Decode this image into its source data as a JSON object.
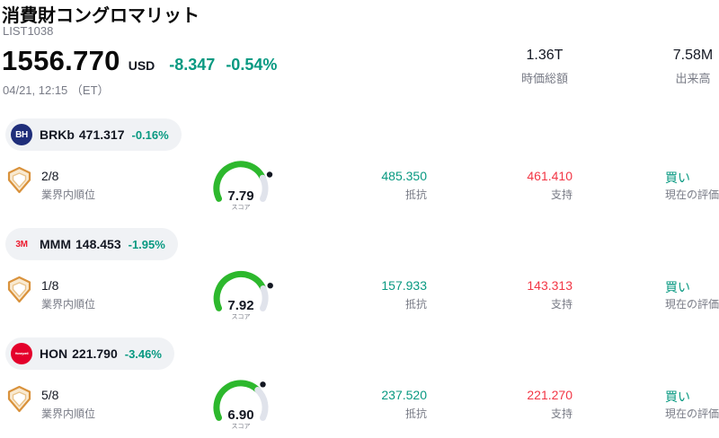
{
  "header": {
    "title": "消費財コングロマリット",
    "list_id": "LIST1038",
    "price": "1556.770",
    "currency": "USD",
    "change": "-8.347",
    "change_pct": "-0.54%",
    "datetime": "04/21, 12:15 （ET）",
    "market_cap": {
      "value": "1.36T",
      "label": "時価総額"
    },
    "volume": {
      "value": "7.58M",
      "label": "出来高"
    }
  },
  "labels": {
    "rank": "業界内順位",
    "score": "スコア",
    "resistance": "抵抗",
    "support": "支持",
    "rating": "現在の評価"
  },
  "colors": {
    "positive": "#089981",
    "negative": "#f23645",
    "gauge_green": "#2db82d",
    "gauge_gray": "#e0e3eb"
  },
  "stocks": [
    {
      "ticker": "BRKb",
      "price": "471.317",
      "change_pct": "-0.16%",
      "logo_text": "BH",
      "logo_bg": "#1f2e7a",
      "logo_color": "#ffffff",
      "rank": "2/8",
      "score": 7.79,
      "resistance": "485.350",
      "support": "461.410",
      "rating": "買い"
    },
    {
      "ticker": "MMM",
      "price": "148.453",
      "change_pct": "-1.95%",
      "logo_text": "3M",
      "logo_bg": "transparent",
      "logo_color": "#ed1b2e",
      "rank": "1/8",
      "score": 7.92,
      "resistance": "157.933",
      "support": "143.313",
      "rating": "買い"
    },
    {
      "ticker": "HON",
      "price": "221.790",
      "change_pct": "-3.46%",
      "logo_text": "Honeywell",
      "logo_bg": "#e4002b",
      "logo_color": "#ffffff",
      "rank": "5/8",
      "score": 6.9,
      "resistance": "237.520",
      "support": "221.270",
      "rating": "買い"
    }
  ]
}
